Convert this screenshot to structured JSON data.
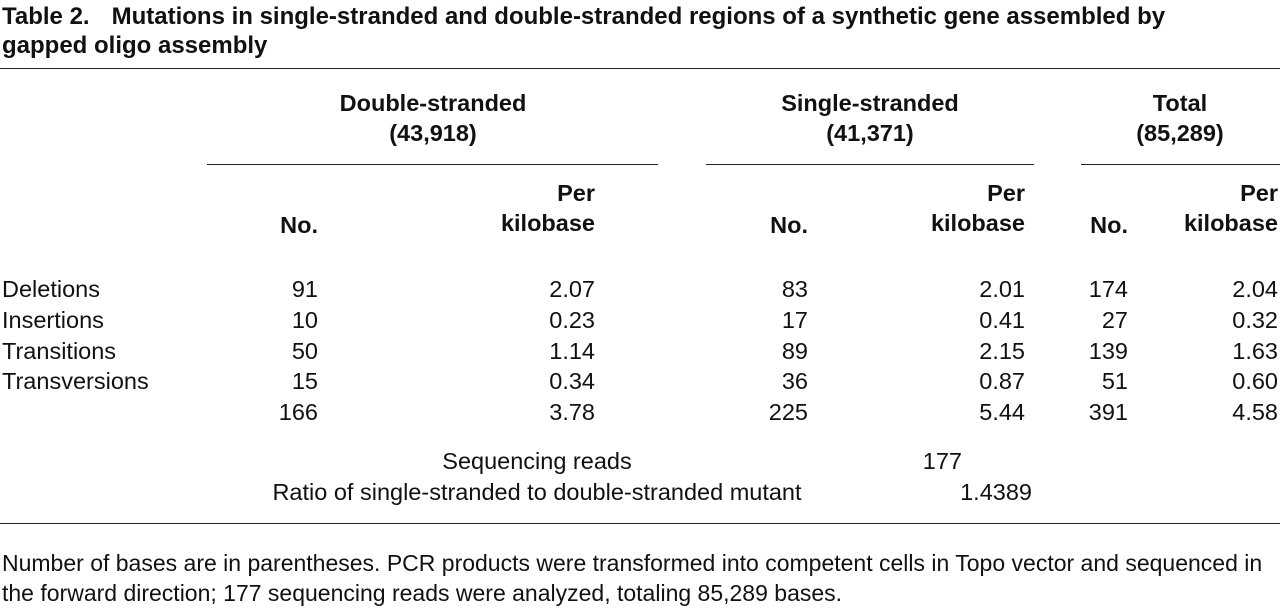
{
  "title": {
    "label": "Table 2.",
    "text": "Mutations in single-stranded and double-stranded regions of a synthetic gene assembled by gapped oligo assembly"
  },
  "table": {
    "groups": [
      {
        "name": "Double-stranded",
        "bases": "(43,918)"
      },
      {
        "name": "Single-stranded",
        "bases": "(41,371)"
      },
      {
        "name": "Total",
        "bases": "(85,289)"
      }
    ],
    "subheaders": [
      [
        "No.",
        "Per kilobase"
      ],
      [
        "No.",
        "Per kilobase"
      ],
      [
        "No.",
        "Per kilobase"
      ]
    ],
    "rows": [
      [
        "Deletions",
        "91",
        "2.07",
        "83",
        "2.01",
        "174",
        "2.04"
      ],
      [
        "Insertions",
        "10",
        "0.23",
        "17",
        "0.41",
        "27",
        "0.32"
      ],
      [
        "Transitions",
        "50",
        "1.14",
        "89",
        "2.15",
        "139",
        "1.63"
      ],
      [
        "Transversions",
        "15",
        "0.34",
        "36",
        "0.87",
        "51",
        "0.60"
      ],
      [
        null,
        "166",
        "3.78",
        "225",
        "5.44",
        "391",
        "4.58"
      ]
    ]
  },
  "summary": [
    {
      "label": "Sequencing reads",
      "value": "177"
    },
    {
      "label": "Ratio of single-stranded to double-stranded mutant",
      "value": "1.4389"
    }
  ],
  "footnote": "Number of bases are in parentheses. PCR products were transformed into competent cells in Topo vector and sequenced in the forward direction; 177 sequencing reads were analyzed, totaling 85,289 bases."
}
